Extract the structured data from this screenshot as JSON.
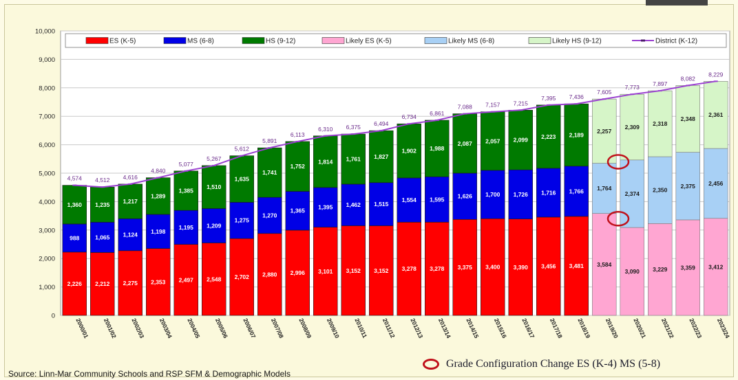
{
  "source": "Source:  Linn-Mar Community Schools and RSP SFM & Demographic Models",
  "note": "Grade Configuration Change ES (K-4) MS (5-8)",
  "colors": {
    "es": "#ff0000",
    "ms": "#0000e6",
    "hs": "#007a00",
    "likely_es": "#ffa6d2",
    "likely_ms": "#a8d0f5",
    "likely_hs": "#d6f5c8",
    "district": "#9a40d0",
    "annotation_ring": "#c0101a"
  },
  "chart_data": {
    "type": "bar",
    "stacked": true,
    "ylim": [
      0,
      10000
    ],
    "yticks": [
      "0",
      "1,000",
      "2,000",
      "3,000",
      "4,000",
      "5,000",
      "6,000",
      "7,000",
      "8,000",
      "9,000",
      "10,000"
    ],
    "categories": [
      "2000/01",
      "2001/02",
      "2002/03",
      "2003/04",
      "2004/05",
      "2005/06",
      "2006/07",
      "2007/08",
      "2008/09",
      "2009/10",
      "2010/11",
      "2011/12",
      "2012/13",
      "2013/14",
      "2014/15",
      "2015/16",
      "2016/17",
      "2017/18",
      "2018/19",
      "2019/20",
      "2020/21",
      "2021/22",
      "2022/23",
      "2023/24"
    ],
    "projected_from_index": 19,
    "legend": [
      "ES (K-5)",
      "MS (6-8)",
      "HS (9-12)",
      "Likely ES (K-5)",
      "Likely MS (6-8)",
      "Likely HS (9-12)",
      "District (K-12)"
    ],
    "series": [
      {
        "name": "ES (K-5)",
        "projected_name": "Likely ES (K-5)",
        "values": [
          2226,
          2212,
          2275,
          2353,
          2497,
          2548,
          2702,
          2880,
          2996,
          3101,
          3152,
          3152,
          3278,
          3278,
          3375,
          3400,
          3390,
          3456,
          3481,
          3584,
          3090,
          3229,
          3359,
          3412
        ],
        "labels": [
          "2,226",
          "2,212",
          "2,275",
          "2,353",
          "2,497",
          "2,548",
          "2,702",
          "2,880",
          "2,996",
          "3,101",
          "3,152",
          "3,152",
          "3,278",
          "3,278",
          "3,375",
          "3,400",
          "3,390",
          "3,456",
          "3,481",
          "3,584",
          "3,090",
          "3,229",
          "3,359",
          "3,412"
        ]
      },
      {
        "name": "MS (6-8)",
        "projected_name": "Likely MS (6-8)",
        "values": [
          988,
          1065,
          1124,
          1198,
          1195,
          1209,
          1275,
          1270,
          1365,
          1395,
          1462,
          1515,
          1554,
          1595,
          1626,
          1700,
          1726,
          1716,
          1766,
          1764,
          2374,
          2350,
          2375,
          2456
        ],
        "labels": [
          "988",
          "1,065",
          "1,124",
          "1,198",
          "1,195",
          "1,209",
          "1,275",
          "1,270",
          "1,365",
          "1,395",
          "1,462",
          "1,515",
          "1,554",
          "1,595",
          "1,626",
          "1,700",
          "1,726",
          "1,716",
          "1,766",
          "1,764",
          "2,374",
          "2,350",
          "2,375",
          "2,456"
        ]
      },
      {
        "name": "HS (9-12)",
        "projected_name": "Likely HS (9-12)",
        "values": [
          1360,
          1235,
          1217,
          1289,
          1385,
          1510,
          1635,
          1741,
          1752,
          1814,
          1761,
          1827,
          1902,
          1988,
          2087,
          2057,
          2099,
          2223,
          2189,
          2257,
          2309,
          2318,
          2348,
          2361
        ],
        "labels": [
          "1,360",
          "1,235",
          "1,217",
          "1,289",
          "1,385",
          "1,510",
          "1,635",
          "1,741",
          "1,752",
          "1,814",
          "1,761",
          "1,827",
          "1,902",
          "1,988",
          "2,087",
          "2,057",
          "2,099",
          "2,223",
          "2,189",
          "2,257",
          "2,309",
          "2,318",
          "2,348",
          "2,361"
        ]
      }
    ],
    "district": {
      "name": "District (K-12)",
      "values": [
        4574,
        4512,
        4616,
        4840,
        5077,
        5267,
        5612,
        5891,
        6113,
        6310,
        6375,
        6494,
        6734,
        6861,
        7088,
        7157,
        7215,
        7395,
        7436,
        7605,
        7773,
        7897,
        8082,
        8229
      ],
      "labels": [
        "4,574",
        "4,512",
        "4,616",
        "4,840",
        "5,077",
        "5,267",
        "5,612",
        "5,891",
        "6,113",
        "6,310",
        "6,375",
        "6,494",
        "6,734",
        "6,861",
        "7,088",
        "7,157",
        "7,215",
        "7,395",
        "7,436",
        "7,605",
        "7,773",
        "7,897",
        "8,082",
        "8,229"
      ]
    },
    "annotations": [
      {
        "category_index": 19.5,
        "value": 3400,
        "marker": "red-circle"
      },
      {
        "category_index": 19.5,
        "value": 5400,
        "marker": "red-circle"
      }
    ],
    "grid": true,
    "legend_position": "top"
  }
}
